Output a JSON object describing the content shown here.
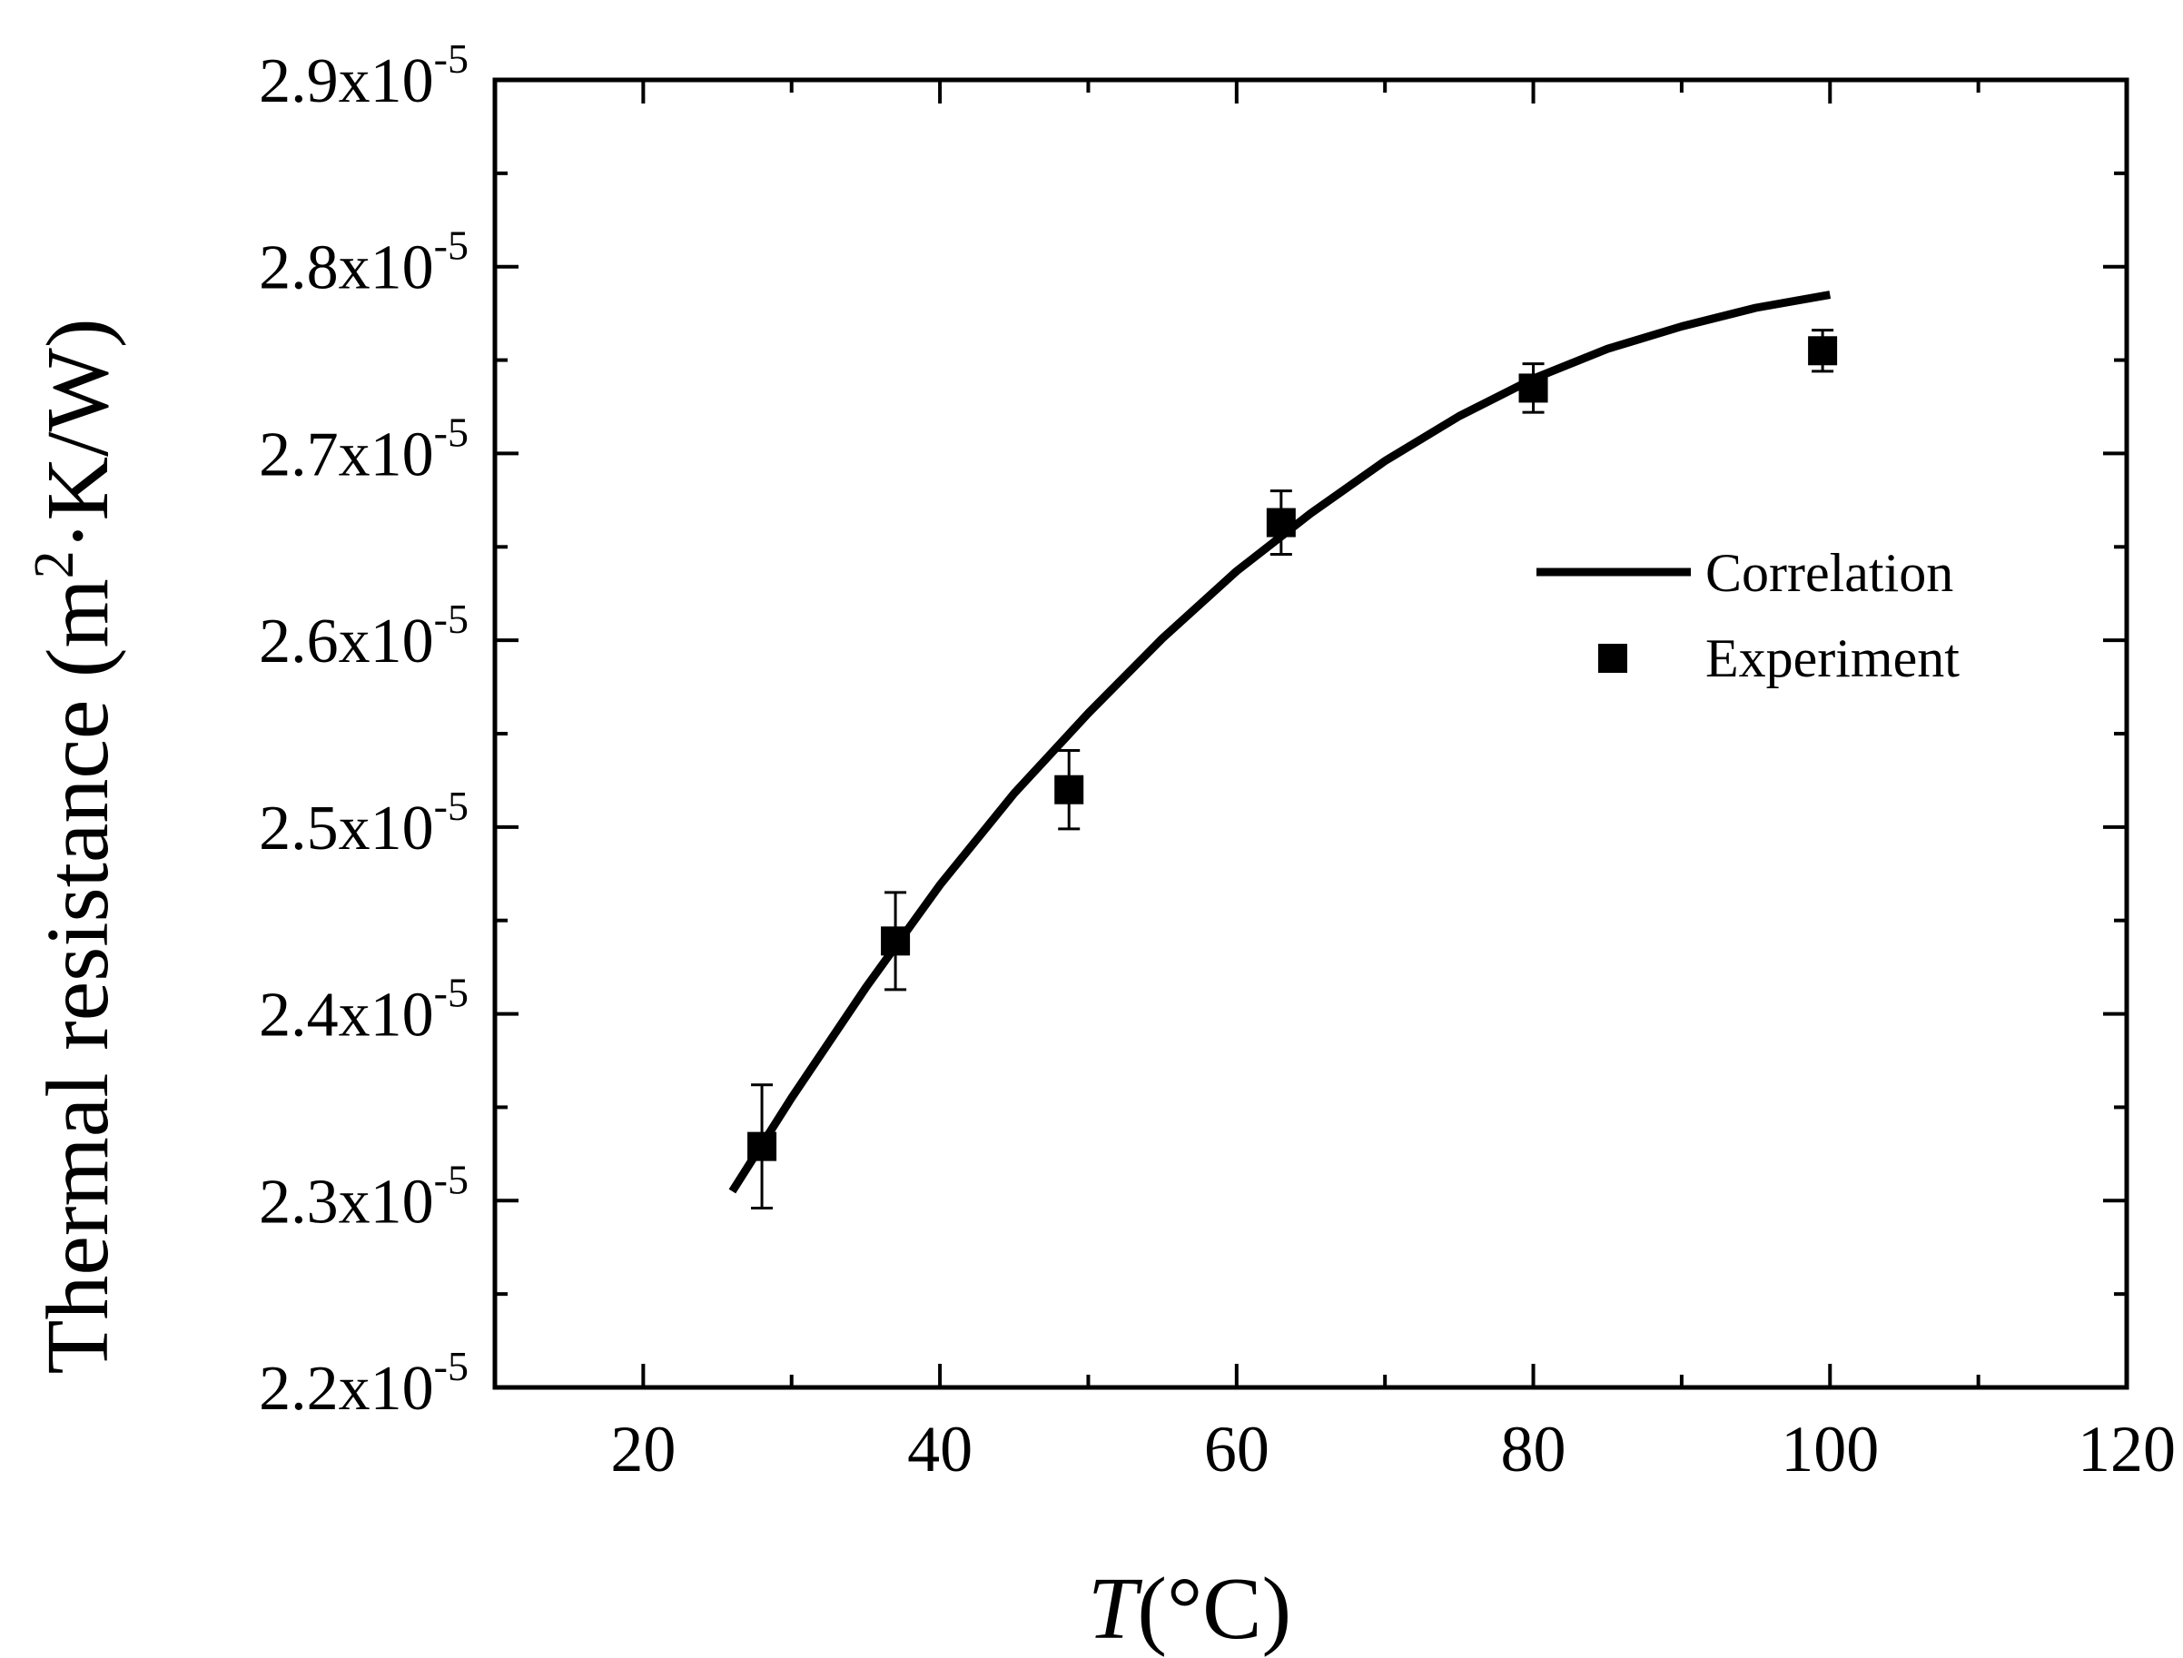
{
  "chart_data": {
    "type": "line",
    "xlabel_italic": "T",
    "xlabel_unit": "(°C)",
    "ylabel": "Thermal resistance (m",
    "ylabel_sup": "2",
    "ylabel_tail": "·K/W)",
    "xlim": [
      10,
      120
    ],
    "ylim": [
      2.2e-05,
      2.9e-05
    ],
    "x_ticks": [
      20,
      40,
      60,
      80,
      100,
      120
    ],
    "x_tick_labels": [
      "20",
      "40",
      "60",
      "80",
      "100",
      "120"
    ],
    "x_minor_ticks": [
      10,
      30,
      50,
      70,
      90,
      110
    ],
    "y_ticks": [
      2.2e-05,
      2.3e-05,
      2.4e-05,
      2.5e-05,
      2.6e-05,
      2.7e-05,
      2.8e-05,
      2.9e-05
    ],
    "y_tick_mantissas": [
      "2.2",
      "2.3",
      "2.4",
      "2.5",
      "2.6",
      "2.7",
      "2.8",
      "2.9"
    ],
    "y_tick_base": "x10",
    "y_tick_exponent": "-5",
    "y_minor_ticks": [
      2.25e-05,
      2.35e-05,
      2.45e-05,
      2.55e-05,
      2.65e-05,
      2.75e-05,
      2.85e-05
    ],
    "grid": false,
    "legend_position": "right",
    "series": [
      {
        "name": "Correlation",
        "kind": "line",
        "color": "#000000",
        "x": [
          26,
          30,
          35,
          40,
          45,
          50,
          55,
          60,
          65,
          70,
          75,
          80,
          85,
          90,
          95,
          100
        ],
        "y": [
          2.305e-05,
          2.355e-05,
          2.414e-05,
          2.469e-05,
          2.518e-05,
          2.561e-05,
          2.601e-05,
          2.637e-05,
          2.668e-05,
          2.696e-05,
          2.72e-05,
          2.74e-05,
          2.756e-05,
          2.768e-05,
          2.778e-05,
          2.785e-05
        ]
      },
      {
        "name": "Experiment",
        "kind": "scatter",
        "marker": "square",
        "color": "#000000",
        "x": [
          28,
          37,
          48.7,
          63,
          80,
          99.5
        ],
        "y": [
          2.329e-05,
          2.439e-05,
          2.52e-05,
          2.663e-05,
          2.735e-05,
          2.755e-05
        ],
        "error": [
          3.3e-07,
          2.6e-07,
          2.1e-07,
          1.7e-07,
          1.3e-07,
          1.1e-07
        ]
      }
    ]
  }
}
